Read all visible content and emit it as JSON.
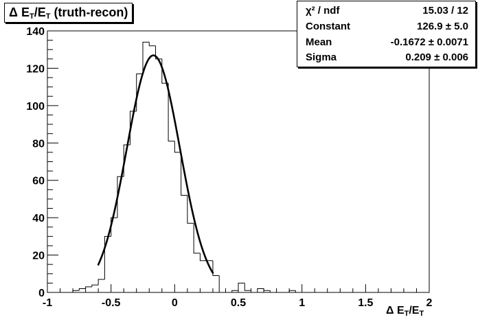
{
  "title": "Δ E_T/E_T (truth-recon)",
  "stats": {
    "rows": [
      {
        "key": "χ² / ndf",
        "value": "15.03 / 12"
      },
      {
        "key": "Constant",
        "value": "126.9 ± 5.0"
      },
      {
        "key": "Mean",
        "value": "-0.1672 ± 0.0071"
      },
      {
        "key": "Sigma",
        "value": "0.209 ± 0.006"
      }
    ]
  },
  "chart_data": {
    "type": "bar",
    "xlabel": "Δ E_T/E_T",
    "ylabel": "",
    "xlim": [
      -1,
      2
    ],
    "ylim": [
      0,
      140
    ],
    "xticks": [
      -1,
      -0.5,
      0,
      0.5,
      1,
      1.5,
      2
    ],
    "xtick_labels": [
      "-1",
      "-0.5",
      "0",
      "0.5",
      "1",
      "1.5",
      "2"
    ],
    "yticks": [
      0,
      20,
      40,
      60,
      80,
      100,
      120,
      140
    ],
    "ytick_labels": [
      "0",
      "20",
      "40",
      "60",
      "80",
      "100",
      "120",
      "140"
    ],
    "grid": false,
    "histogram": {
      "bin_width": 0.05,
      "bin_low_edges": [
        -0.85,
        -0.8,
        -0.75,
        -0.7,
        -0.65,
        -0.6,
        -0.55,
        -0.5,
        -0.45,
        -0.4,
        -0.35,
        -0.3,
        -0.25,
        -0.2,
        -0.15,
        -0.1,
        -0.05,
        0.0,
        0.05,
        0.1,
        0.15,
        0.2,
        0.25,
        0.3,
        0.35,
        0.4,
        0.45,
        0.5,
        0.55,
        0.6,
        0.65,
        0.7,
        0.75,
        0.8,
        0.85,
        0.9,
        0.95
      ],
      "counts": [
        0,
        1,
        2,
        3,
        4,
        7,
        30,
        40,
        62,
        79,
        97,
        117,
        134,
        132,
        125,
        112,
        81,
        75,
        52,
        37,
        21,
        17,
        17,
        9,
        0,
        0,
        1,
        5,
        1,
        0,
        2,
        1,
        0,
        0,
        0,
        1,
        0
      ]
    },
    "fit": {
      "type": "gaussian",
      "constant": 126.9,
      "mean": -0.1672,
      "sigma": 0.209,
      "range": [
        -0.6,
        0.3
      ]
    }
  }
}
